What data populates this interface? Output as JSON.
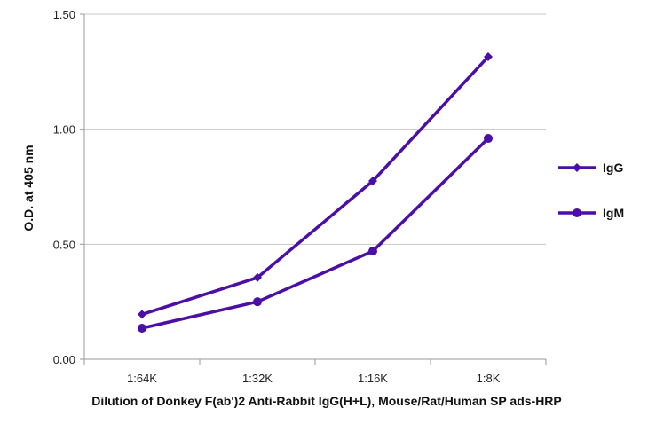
{
  "chart_data": {
    "type": "line",
    "title": "",
    "xlabel": "Dilution of Donkey F(ab')2 Anti-Rabbit IgG(H+L), Mouse/Rat/Human SP ads-HRP",
    "ylabel": "O.D. at 405 nm",
    "categories": [
      "1:64K",
      "1:32K",
      "1:16K",
      "1:8K"
    ],
    "ylim": [
      0,
      1.5
    ],
    "yticks": [
      "0.00",
      "0.50",
      "1.00",
      "1.50"
    ],
    "grid": true,
    "legend_position": "right",
    "series": [
      {
        "name": "IgG",
        "marker": "diamond",
        "color": "#4b0fa8",
        "values": [
          0.195,
          0.355,
          0.775,
          1.315
        ]
      },
      {
        "name": "IgM",
        "marker": "circle",
        "color": "#4b0fa8",
        "values": [
          0.135,
          0.25,
          0.47,
          0.96
        ]
      }
    ]
  }
}
